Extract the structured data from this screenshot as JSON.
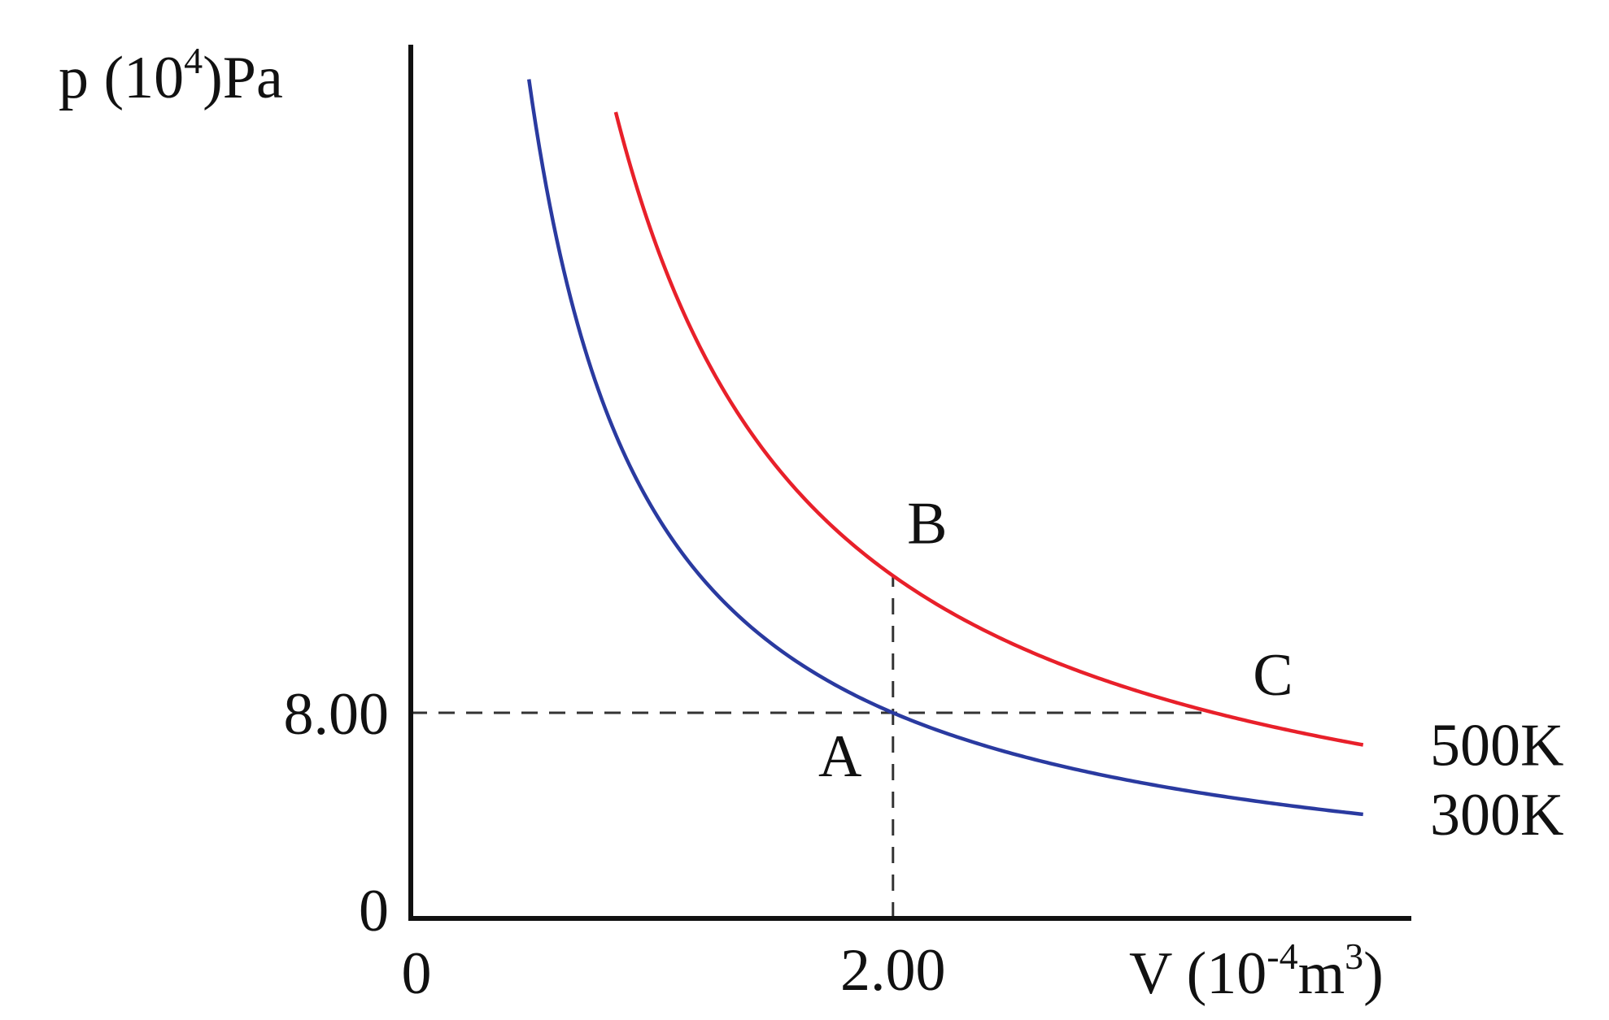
{
  "chart_data": {
    "type": "line",
    "title": "",
    "ylabel": {
      "base": "p (10",
      "sup": "4",
      "unit": ")Pa"
    },
    "xlabel": {
      "base": "V (10",
      "sup": "-4",
      "mid": "m",
      "sup2": "3",
      "end": ")"
    },
    "origin": {
      "x_label": "0",
      "y_label": "0"
    },
    "xlim": [
      0,
      4.15
    ],
    "ylim": [
      0,
      34
    ],
    "x_ticks": [
      {
        "value": 2.0,
        "label": "2.00"
      }
    ],
    "y_ticks": [
      {
        "value": 8.0,
        "label": "8.00"
      }
    ],
    "grid": false,
    "series": [
      {
        "name": "300K",
        "color": "#2a3aa0",
        "k": 16,
        "x_range": [
          0.49,
          3.95
        ]
      },
      {
        "name": "500K",
        "color": "#e8202a",
        "k": 26.67,
        "x_range": [
          0.85,
          3.95
        ]
      }
    ],
    "points": [
      {
        "label": "A",
        "x": 2.0,
        "y": 8.0
      },
      {
        "label": "B",
        "x": 2.0,
        "y": 13.33
      },
      {
        "label": "C",
        "x": 3.33,
        "y": 8.0
      }
    ],
    "reference_lines": [
      {
        "type": "horizontal",
        "y": 8.0,
        "x_from": 0,
        "x_to": 3.33
      },
      {
        "type": "vertical",
        "x": 2.0,
        "y_from": 0,
        "y_to": 13.33
      }
    ]
  }
}
